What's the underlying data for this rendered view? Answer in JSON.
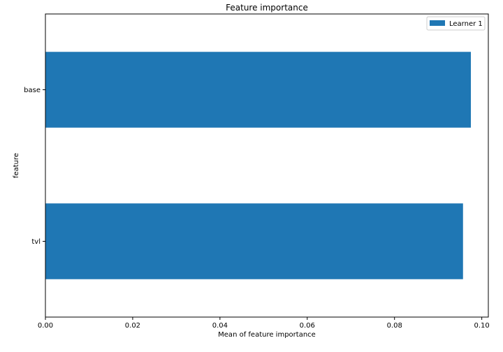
{
  "chart_data": {
    "type": "bar",
    "orientation": "horizontal",
    "title": "Feature importance",
    "xlabel": "Mean of feature importance",
    "ylabel": "feature",
    "categories": [
      "base",
      "tvl"
    ],
    "series": [
      {
        "name": "Learner 1",
        "values": [
          0.0975,
          0.0957
        ],
        "color": "#1f77b4"
      }
    ],
    "xlim": [
      0.0,
      0.1015
    ],
    "xticks": [
      0.0,
      0.02,
      0.04,
      0.06,
      0.08,
      0.1
    ],
    "xtick_labels": [
      "0.00",
      "0.02",
      "0.04",
      "0.06",
      "0.08",
      "0.10"
    ],
    "grid": false,
    "legend_position": "top-right"
  }
}
